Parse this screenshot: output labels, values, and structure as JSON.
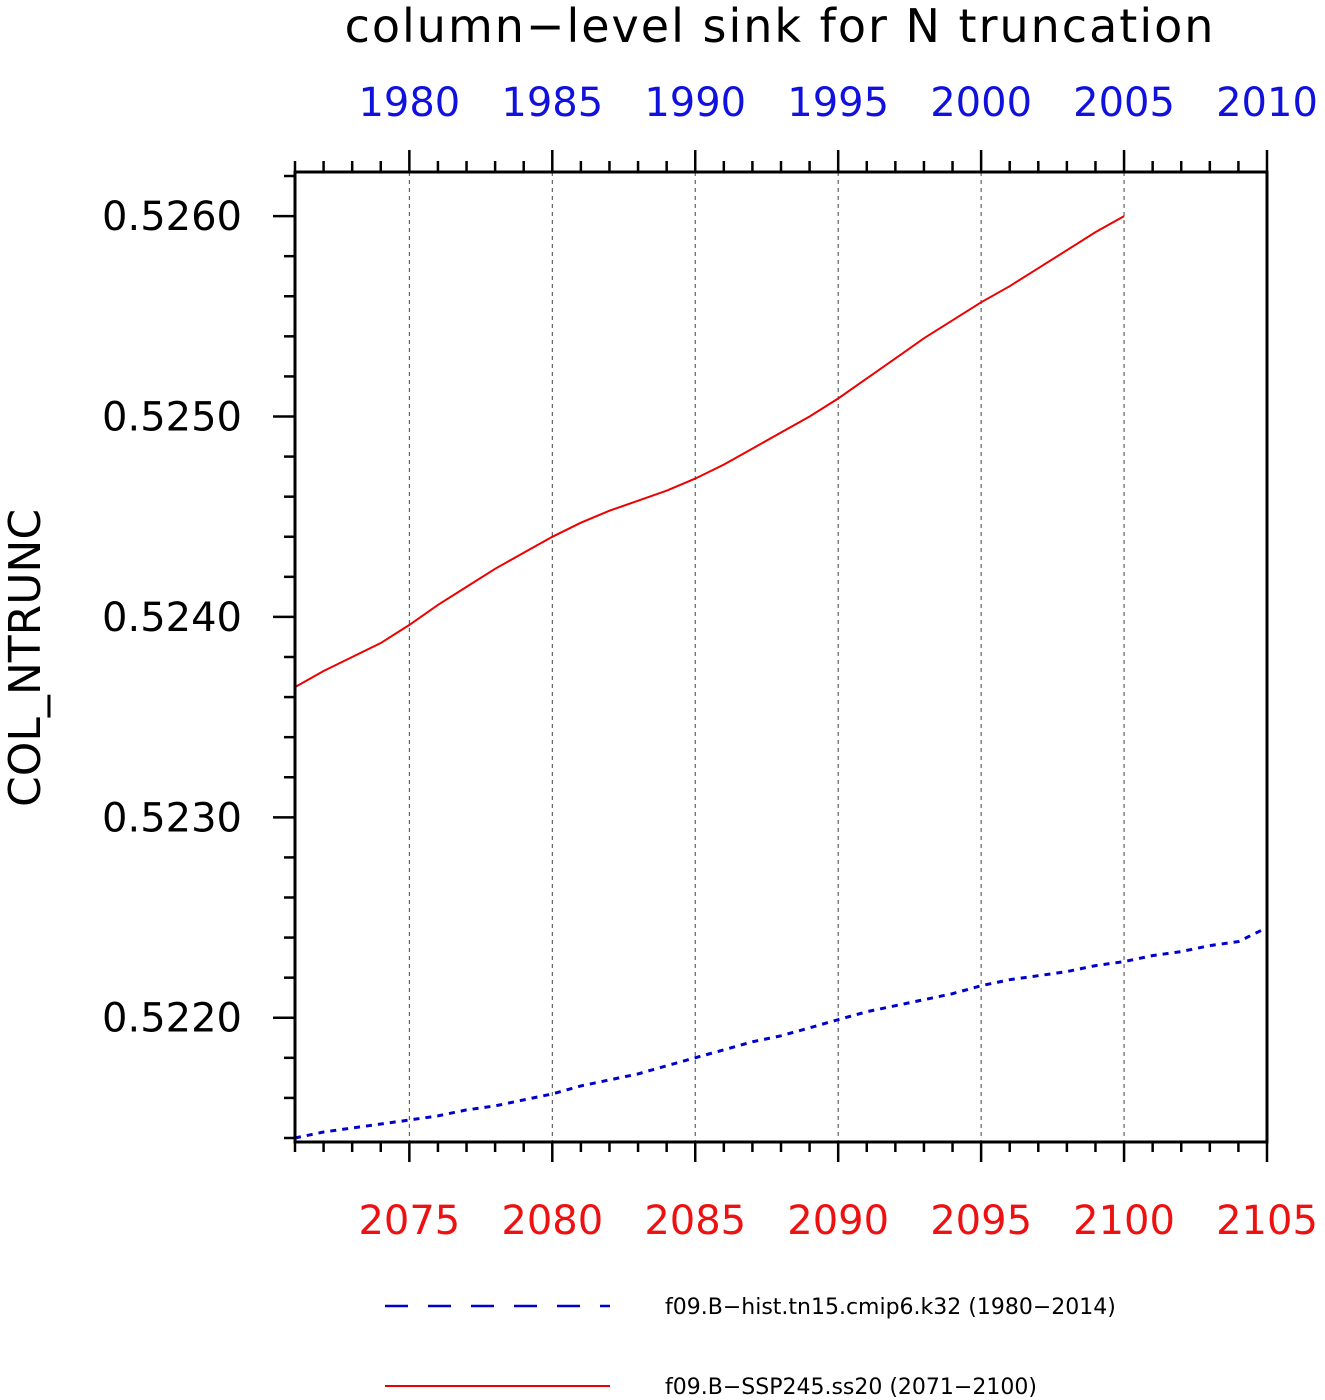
{
  "chart_data": {
    "type": "line",
    "title": "column−level sink for N truncation",
    "ylabel": "COL_NTRUNC",
    "ylim": [
      0.52138,
      0.52622
    ],
    "y_ticks": [
      "0.5220",
      "0.5230",
      "0.5240",
      "0.5250",
      "0.5260"
    ],
    "y_tick_values": [
      0.522,
      0.523,
      0.524,
      0.525,
      0.526
    ],
    "bottom_axis": {
      "color": "#ee1111",
      "range": [
        2071,
        2105
      ],
      "tick_labels": [
        "2075",
        "2080",
        "2085",
        "2090",
        "2095",
        "2100",
        "2105"
      ]
    },
    "top_axis": {
      "color": "#1111dd",
      "range": [
        1976,
        2010
      ],
      "tick_labels": [
        "1980",
        "1985",
        "1990",
        "1995",
        "2000",
        "2005",
        "2010"
      ]
    },
    "grid": "vertical dashed at major ticks",
    "legend_position": "bottom",
    "series": [
      {
        "name": "f09.B−hist.tn15.cmip6.k32 (1980−2014)",
        "axis": "top",
        "color": "#0000cc",
        "dash": "dotted",
        "x": [
          1976,
          1977,
          1978,
          1979,
          1980,
          1981,
          1982,
          1983,
          1984,
          1985,
          1986,
          1987,
          1988,
          1989,
          1990,
          1991,
          1992,
          1993,
          1994,
          1995,
          1996,
          1997,
          1998,
          1999,
          2000,
          2001,
          2002,
          2003,
          2004,
          2005,
          2006,
          2007,
          2008,
          2009,
          2010
        ],
        "y": [
          0.5214,
          0.52143,
          0.52145,
          0.52147,
          0.52149,
          0.52151,
          0.52154,
          0.52156,
          0.52159,
          0.52162,
          0.52166,
          0.52169,
          0.52172,
          0.52176,
          0.5218,
          0.52184,
          0.52188,
          0.52191,
          0.52195,
          0.52199,
          0.52203,
          0.52206,
          0.52209,
          0.52212,
          0.52216,
          0.52219,
          0.52221,
          0.52223,
          0.52226,
          0.52228,
          0.52231,
          0.52233,
          0.52236,
          0.52238,
          0.52245
        ]
      },
      {
        "name": "f09.B−SSP245.ss20 (2071−2100)",
        "axis": "bottom",
        "color": "#ee0000",
        "dash": "solid",
        "x": [
          2071,
          2072,
          2073,
          2074,
          2075,
          2076,
          2077,
          2078,
          2079,
          2080,
          2081,
          2082,
          2083,
          2084,
          2085,
          2086,
          2087,
          2088,
          2089,
          2090,
          2091,
          2092,
          2093,
          2094,
          2095,
          2096,
          2097,
          2098,
          2099,
          2100
        ],
        "y": [
          0.52365,
          0.52373,
          0.5238,
          0.52387,
          0.52396,
          0.52406,
          0.52415,
          0.52424,
          0.52432,
          0.5244,
          0.52447,
          0.52453,
          0.52458,
          0.52463,
          0.52469,
          0.52476,
          0.52484,
          0.52492,
          0.525,
          0.52509,
          0.52519,
          0.52529,
          0.52539,
          0.52548,
          0.52557,
          0.52565,
          0.52574,
          0.52583,
          0.52592,
          0.526
        ]
      }
    ]
  }
}
